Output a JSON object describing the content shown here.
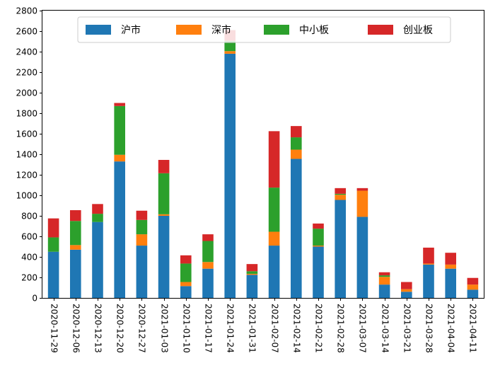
{
  "chart_data": {
    "type": "bar",
    "stacked": true,
    "title": "",
    "xlabel": "",
    "ylabel": "",
    "ylim": [
      0,
      2800
    ],
    "yticks": [
      0,
      200,
      400,
      600,
      800,
      1000,
      1200,
      1400,
      1600,
      1800,
      2000,
      2200,
      2400,
      2600,
      2800
    ],
    "legend_position": "top-center",
    "grid": false,
    "categories": [
      "2020-11-29",
      "2020-12-06",
      "2020-12-13",
      "2020-12-20",
      "2020-12-27",
      "2021-01-03",
      "2021-01-10",
      "2021-01-17",
      "2021-01-24",
      "2021-01-31",
      "2021-02-07",
      "2021-02-14",
      "2021-02-21",
      "2021-02-28",
      "2021-03-07",
      "2021-03-14",
      "2021-03-21",
      "2021-03-28",
      "2021-04-04",
      "2021-04-11"
    ],
    "series": [
      {
        "name": "沪市",
        "color": "#1f77b4",
        "values": [
          450,
          470,
          740,
          1330,
          510,
          800,
          115,
          285,
          2380,
          225,
          510,
          1355,
          500,
          955,
          790,
          130,
          60,
          325,
          285,
          80
        ]
      },
      {
        "name": "深市",
        "color": "#ff7f0e",
        "values": [
          0,
          45,
          0,
          65,
          110,
          15,
          40,
          65,
          25,
          10,
          135,
          90,
          10,
          50,
          255,
          75,
          25,
          10,
          40,
          50
        ]
      },
      {
        "name": "中小板",
        "color": "#2ca02c",
        "values": [
          140,
          235,
          80,
          475,
          140,
          400,
          180,
          205,
          100,
          25,
          430,
          120,
          165,
          10,
          0,
          15,
          0,
          0,
          0,
          0
        ]
      },
      {
        "name": "创业板",
        "color": "#d62728",
        "values": [
          185,
          105,
          95,
          30,
          90,
          130,
          80,
          65,
          105,
          70,
          550,
          110,
          50,
          55,
          25,
          30,
          70,
          155,
          115,
          65
        ]
      }
    ]
  }
}
